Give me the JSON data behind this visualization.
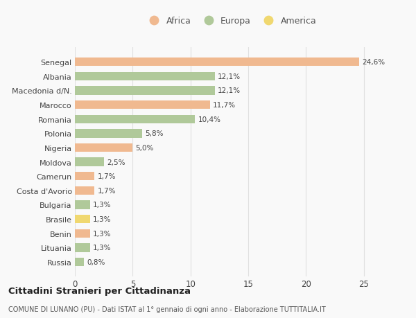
{
  "categories": [
    "Russia",
    "Lituania",
    "Benin",
    "Brasile",
    "Bulgaria",
    "Costa d'Avorio",
    "Camerun",
    "Moldova",
    "Nigeria",
    "Polonia",
    "Romania",
    "Marocco",
    "Macedonia d/N.",
    "Albania",
    "Senegal"
  ],
  "values": [
    0.8,
    1.3,
    1.3,
    1.3,
    1.3,
    1.7,
    1.7,
    2.5,
    5.0,
    5.8,
    10.4,
    11.7,
    12.1,
    12.1,
    24.6
  ],
  "labels": [
    "0,8%",
    "1,3%",
    "1,3%",
    "1,3%",
    "1,3%",
    "1,7%",
    "1,7%",
    "2,5%",
    "5,0%",
    "5,8%",
    "10,4%",
    "11,7%",
    "12,1%",
    "12,1%",
    "24,6%"
  ],
  "continents": [
    "Europa",
    "Europa",
    "Africa",
    "America",
    "Europa",
    "Africa",
    "Africa",
    "Europa",
    "Africa",
    "Europa",
    "Europa",
    "Africa",
    "Europa",
    "Europa",
    "Africa"
  ],
  "colors": {
    "Africa": "#F0B990",
    "Europa": "#B0C99A",
    "America": "#F0D870"
  },
  "legend_order": [
    "Africa",
    "Europa",
    "America"
  ],
  "title": "Cittadini Stranieri per Cittadinanza",
  "subtitle": "COMUNE DI LUNANO (PU) - Dati ISTAT al 1° gennaio di ogni anno - Elaborazione TUTTITALIA.IT",
  "xlim": [
    0,
    27
  ],
  "xticks": [
    0,
    5,
    10,
    15,
    20,
    25
  ],
  "background_color": "#f9f9f9",
  "grid_color": "#e0e0e0"
}
